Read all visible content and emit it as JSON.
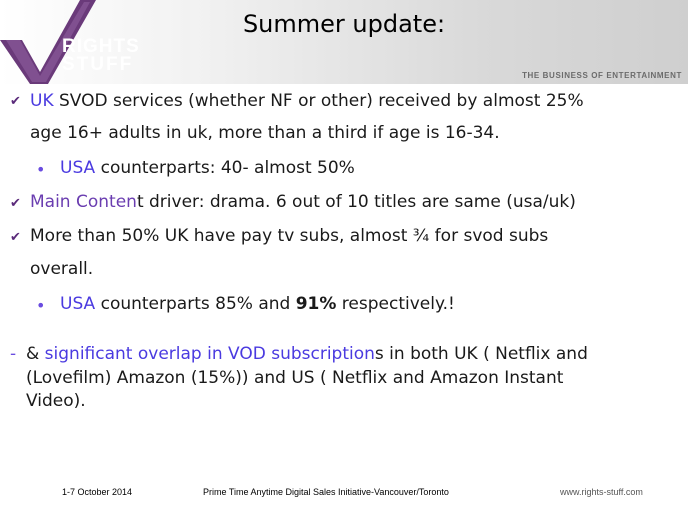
{
  "header": {
    "title": "Summer update:",
    "logo_line1": "RIGHTS",
    "logo_line2": "STUFF",
    "tagline": "THE BUSINESS OF ENTERTAINMENT"
  },
  "bullets": {
    "b1": {
      "part1": "UK",
      "part2": " SVOD services (whether NF or other) received by almost 25%",
      "line2": "age 16+ adults in uk, more than a third if age is 16-34."
    },
    "b1_sub": {
      "part1": "USA",
      "part2": " counterparts: 40- almost 50%"
    },
    "b2": {
      "part1": "Main Conten",
      "part2": "t driver: drama.  6 out of 10  titles are same (usa/uk)"
    },
    "b3": {
      "line1": "More than 50% UK have pay tv subs, almost ¾ for svod subs",
      "line2": "overall."
    },
    "b3_sub": {
      "part1": "USA",
      "part2": " counterparts  85% and ",
      "bold": "91%",
      "part3": " respectively.!"
    },
    "b4": {
      "part1": "& ",
      "part2": "significant overlap in VOD subscription",
      "part3": "s in both UK ( Netflix and",
      "line2": "(Lovefilm) Amazon (15%))  and  US ( Netflix and Amazon Instant",
      "line3": "Video)."
    }
  },
  "footer": {
    "date": "1-7 October 2014",
    "event": "Prime Time Anytime Digital Sales Initiative-Vancouver/Toronto",
    "url": "www.rights-stuff.com"
  }
}
